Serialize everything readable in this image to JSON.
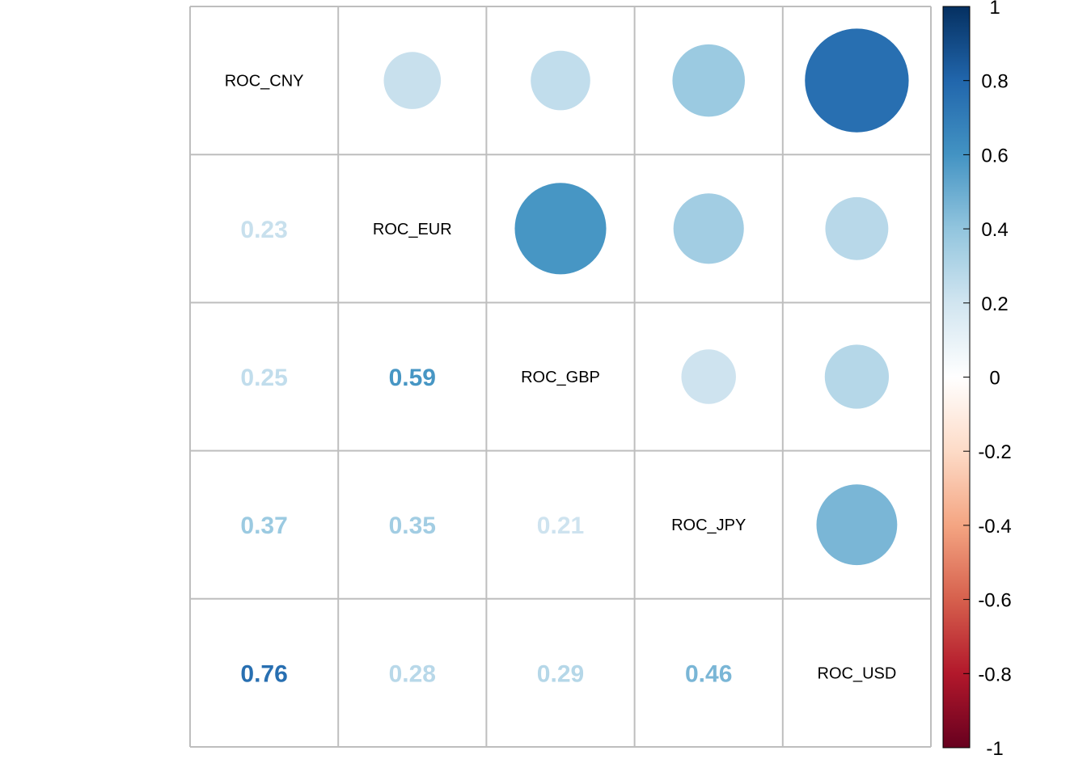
{
  "chart_data": {
    "type": "heatmap",
    "subtype": "correlation-matrix",
    "variables": [
      "ROC_CNY",
      "ROC_EUR",
      "ROC_GBP",
      "ROC_JPY",
      "ROC_USD"
    ],
    "matrix": [
      [
        1.0,
        0.23,
        0.25,
        0.37,
        0.76
      ],
      [
        0.23,
        1.0,
        0.59,
        0.35,
        0.28
      ],
      [
        0.25,
        0.59,
        1.0,
        0.21,
        0.29
      ],
      [
        0.37,
        0.35,
        0.21,
        1.0,
        0.46
      ],
      [
        0.76,
        0.28,
        0.29,
        0.46,
        1.0
      ]
    ],
    "upper_triangle": "circle",
    "lower_triangle": "number",
    "diagonal": "variable-name",
    "grid": true,
    "legend": {
      "placement": "right",
      "range": [
        -1,
        1
      ],
      "ticks": [
        "1",
        "0.8",
        "0.6",
        "0.4",
        "0.2",
        "0",
        "-0.2",
        "-0.4",
        "-0.6",
        "-0.8",
        "-1"
      ],
      "colors": [
        "#67001F",
        "#B2182B",
        "#D6604D",
        "#F4A582",
        "#FDDBC7",
        "#FFFFFF",
        "#D1E5F0",
        "#92C5DE",
        "#4393C3",
        "#2166AC",
        "#053061"
      ]
    }
  }
}
